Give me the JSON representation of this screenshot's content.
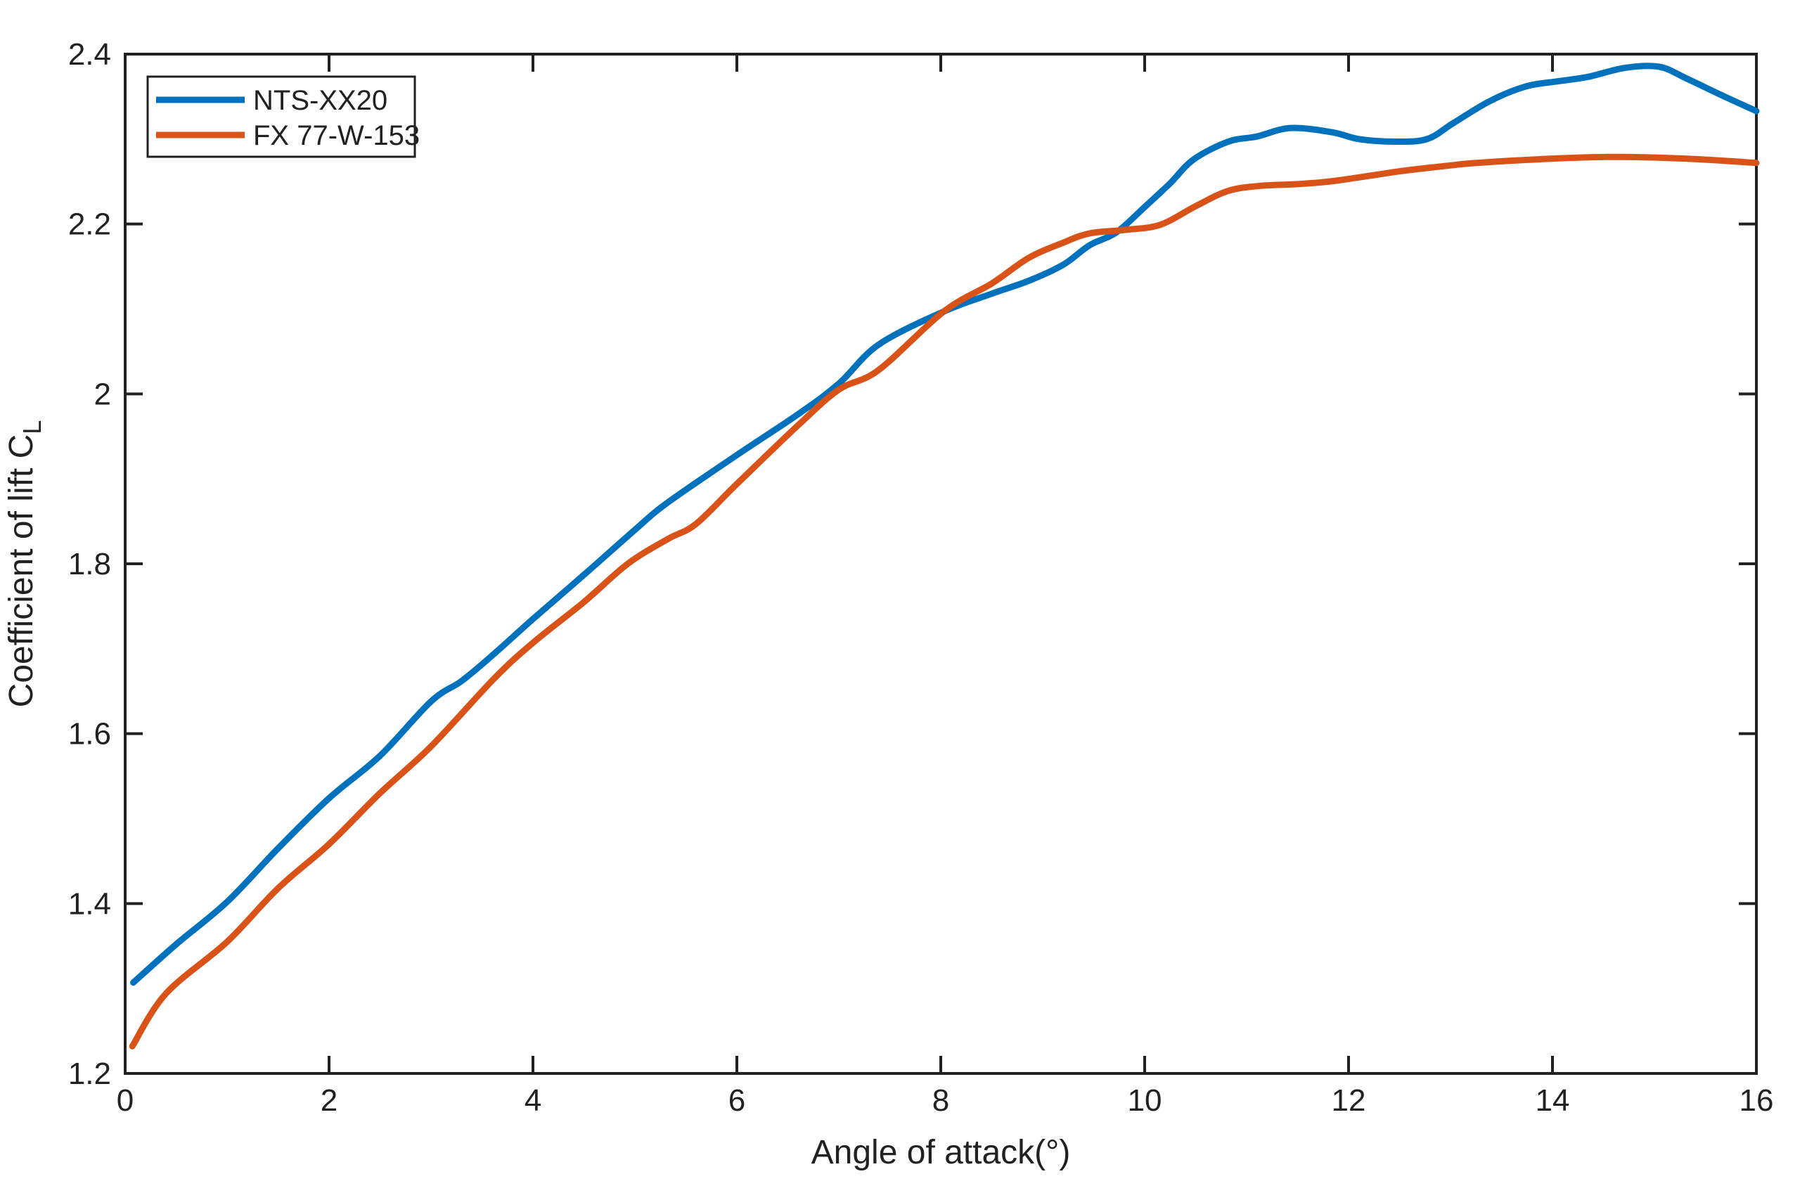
{
  "figure": {
    "background": "#ffffff",
    "axis_color": "#212121",
    "text_color": "#212121"
  },
  "chart_data": {
    "type": "line",
    "title": "",
    "xlabel": "Angle of attack(°)",
    "ylabel": "Coefficient of lift C",
    "ylabel_subscript": "L",
    "xlim": [
      0,
      16
    ],
    "ylim": [
      1.2,
      2.4
    ],
    "xticks": [
      "0",
      "2",
      "4",
      "6",
      "8",
      "10",
      "12",
      "14",
      "16"
    ],
    "xtick_values": [
      0,
      2,
      4,
      6,
      8,
      10,
      12,
      14,
      16
    ],
    "yticks": [
      "1.2",
      "1.4",
      "1.6",
      "1.8",
      "2",
      "2.2",
      "2.4"
    ],
    "ytick_values": [
      1.2,
      1.4,
      1.6,
      1.8,
      2.0,
      2.2,
      2.4
    ],
    "grid": false,
    "legend_position": "top-left",
    "series": [
      {
        "name": "NTS-XX20",
        "color": "#0072BD",
        "x": [
          0.08,
          0.5,
          1.0,
          1.5,
          2.0,
          2.5,
          3.0,
          3.3,
          3.6,
          4.0,
          4.5,
          5.0,
          5.32,
          6.0,
          6.6,
          7.0,
          7.39,
          8.03,
          8.5,
          8.86,
          9.2,
          9.46,
          9.72,
          10.0,
          10.25,
          10.48,
          10.82,
          11.1,
          11.43,
          11.84,
          12.1,
          12.45,
          12.77,
          13.03,
          13.39,
          13.74,
          14.05,
          14.34,
          14.72,
          15.05,
          15.32,
          15.67,
          16.0
        ],
        "y": [
          1.307,
          1.352,
          1.402,
          1.465,
          1.524,
          1.574,
          1.638,
          1.662,
          1.692,
          1.735,
          1.787,
          1.84,
          1.872,
          1.928,
          1.976,
          2.012,
          2.058,
          2.097,
          2.118,
          2.133,
          2.152,
          2.175,
          2.19,
          2.22,
          2.248,
          2.276,
          2.297,
          2.303,
          2.313,
          2.308,
          2.3,
          2.297,
          2.3,
          2.319,
          2.345,
          2.362,
          2.368,
          2.373,
          2.384,
          2.385,
          2.371,
          2.351,
          2.333
        ]
      },
      {
        "name": "FX 77-W-153",
        "color": "#D95319",
        "x": [
          0.07,
          0.4,
          1.0,
          1.5,
          2.0,
          2.5,
          3.0,
          3.62,
          4.0,
          4.5,
          4.93,
          5.32,
          5.6,
          6.0,
          6.6,
          7.0,
          7.39,
          8.03,
          8.5,
          8.86,
          9.2,
          9.46,
          9.8,
          10.15,
          10.5,
          10.82,
          11.14,
          11.5,
          11.88,
          12.5,
          13.0,
          13.26,
          14.0,
          14.63,
          15.3,
          16.0
        ],
        "y": [
          1.232,
          1.294,
          1.355,
          1.418,
          1.47,
          1.53,
          1.585,
          1.665,
          1.707,
          1.755,
          1.8,
          1.829,
          1.847,
          1.894,
          1.963,
          2.005,
          2.028,
          2.097,
          2.13,
          2.16,
          2.178,
          2.189,
          2.193,
          2.199,
          2.221,
          2.239,
          2.245,
          2.247,
          2.251,
          2.262,
          2.269,
          2.272,
          2.277,
          2.279,
          2.277,
          2.272
        ]
      }
    ],
    "legend_labels": [
      "NTS-XX20",
      "FX 77-W-153"
    ]
  }
}
